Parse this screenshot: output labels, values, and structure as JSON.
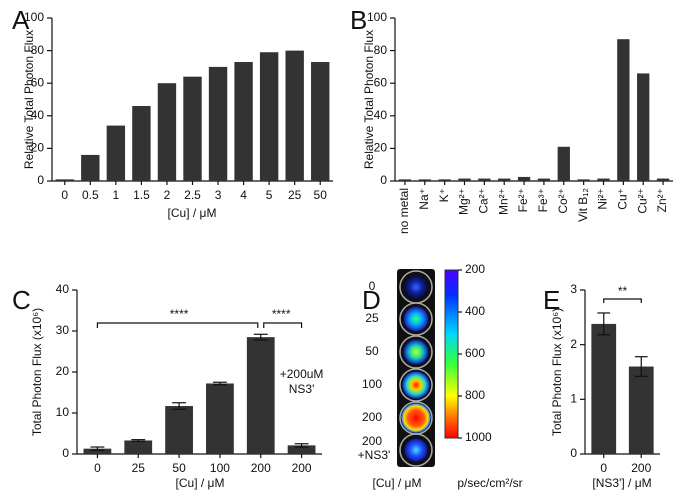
{
  "chart_data": [
    {
      "panel": "A",
      "type": "bar",
      "ylabel": "Relative Total  Photon Flux",
      "xlabel": "[Cu] / μM",
      "categories": [
        "0",
        "0.5",
        "1",
        "1.5",
        "2",
        "2.5",
        "3",
        "4",
        "5",
        "25",
        "50"
      ],
      "values": [
        1,
        16,
        34,
        46,
        60,
        64,
        70,
        73,
        79,
        80,
        73
      ],
      "color": "#333333",
      "ylim": [
        0,
        100
      ],
      "yticks": [
        0,
        20,
        40,
        60,
        80,
        100
      ]
    },
    {
      "panel": "B",
      "type": "bar",
      "ylabel": "Relative Total  Photon Flux",
      "categories": [
        "no metal",
        "Na⁺",
        "K⁺",
        "Mg²⁺",
        "Ca²⁺",
        "Mn²⁺",
        "Fe²⁺",
        "Fe³⁺",
        "Co²⁺",
        "Vit B₁₂",
        "Ni²⁺",
        "Cu⁺",
        "Cu²⁺",
        "Zn²⁺"
      ],
      "values": [
        1,
        1,
        1,
        1.5,
        1.5,
        1.5,
        2.5,
        1.5,
        21,
        1,
        1.5,
        87,
        66,
        1.5
      ],
      "color": "#333333",
      "ylim": [
        0,
        100
      ],
      "yticks": [
        0,
        20,
        40,
        60,
        80,
        100
      ]
    },
    {
      "panel": "C",
      "type": "bar",
      "ylabel": "Total Photon Flux (x10⁶)",
      "xlabel": "[Cu] / μM",
      "categories": [
        "0",
        "25",
        "50",
        "100",
        "200",
        "200"
      ],
      "values": [
        1.3,
        3.3,
        11.7,
        17.2,
        28.5,
        2.1
      ],
      "errors": [
        0.4,
        0.2,
        0.8,
        0.3,
        0.7,
        0.4
      ],
      "color": "#333333",
      "ylim": [
        0,
        40
      ],
      "yticks": [
        0,
        10,
        20,
        30,
        40
      ],
      "annotations": [
        "****",
        "****",
        "+200uM",
        "NS3'"
      ]
    },
    {
      "panel": "D",
      "type": "image",
      "rows": [
        "0",
        "25",
        "50",
        "100",
        "200",
        "200"
      ],
      "row_note": "+NS3'",
      "xlabel": "[Cu] / μM",
      "colorbar_label": "p/sec/cm²/sr",
      "colorbar_lim": [
        200,
        1000
      ],
      "colorbar_ticks": [
        200,
        400,
        600,
        800,
        1000
      ]
    },
    {
      "panel": "E",
      "type": "bar",
      "ylabel": "Total Photon Flux (x10⁶)",
      "xlabel": "[NS3'] / μM",
      "categories": [
        "0",
        "200"
      ],
      "values": [
        2.38,
        1.6
      ],
      "errors": [
        0.2,
        0.18
      ],
      "color": "#333333",
      "ylim": [
        0,
        3
      ],
      "yticks": [
        0,
        1,
        2,
        3
      ],
      "annotations": [
        "**"
      ]
    }
  ]
}
